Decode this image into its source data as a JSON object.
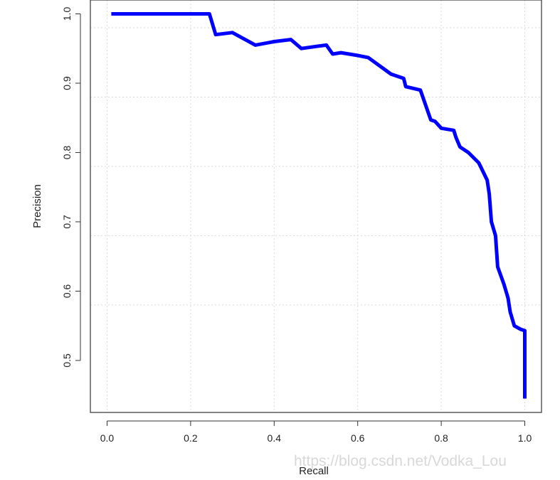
{
  "chart_data": {
    "type": "line",
    "title": "",
    "xlabel": "Recall",
    "ylabel": "Precision",
    "xlim": [
      -0.04,
      1.04
    ],
    "ylim": [
      0.425,
      1.02
    ],
    "grid": true,
    "x_ticks": [
      0.0,
      0.2,
      0.4,
      0.6,
      0.8,
      1.0
    ],
    "x_tick_labels": [
      "0.0",
      "0.2",
      "0.4",
      "0.6",
      "0.8",
      "1.0"
    ],
    "y_ticks": [
      0.5,
      0.6,
      0.7,
      0.8,
      0.9,
      1.0
    ],
    "y_tick_labels": [
      "0.5",
      "0.6",
      "0.7",
      "0.8",
      "0.9",
      "1.0"
    ],
    "series_color": "#0000ff",
    "series": [
      {
        "x": [
          0.01,
          0.06,
          0.12,
          0.18,
          0.245,
          0.26,
          0.3,
          0.355,
          0.4,
          0.44,
          0.465,
          0.5,
          0.525,
          0.54,
          0.56,
          0.6,
          0.625,
          0.68,
          0.71,
          0.715,
          0.75,
          0.775,
          0.785,
          0.8,
          0.83,
          0.835,
          0.845,
          0.865,
          0.89,
          0.91,
          0.915,
          0.92,
          0.93,
          0.935,
          0.95,
          0.96,
          0.965,
          0.975,
          0.99,
          1.0,
          1.0
        ],
        "y": [
          1.0,
          1.0,
          1.0,
          1.0,
          1.0,
          0.97,
          0.973,
          0.955,
          0.96,
          0.963,
          0.95,
          0.953,
          0.955,
          0.942,
          0.944,
          0.94,
          0.937,
          0.913,
          0.907,
          0.895,
          0.89,
          0.847,
          0.845,
          0.835,
          0.832,
          0.822,
          0.808,
          0.8,
          0.785,
          0.76,
          0.74,
          0.7,
          0.68,
          0.635,
          0.61,
          0.59,
          0.57,
          0.55,
          0.545,
          0.543,
          0.445
        ]
      }
    ]
  },
  "watermark": "https://blog.csdn.net/Vodka_Lou"
}
